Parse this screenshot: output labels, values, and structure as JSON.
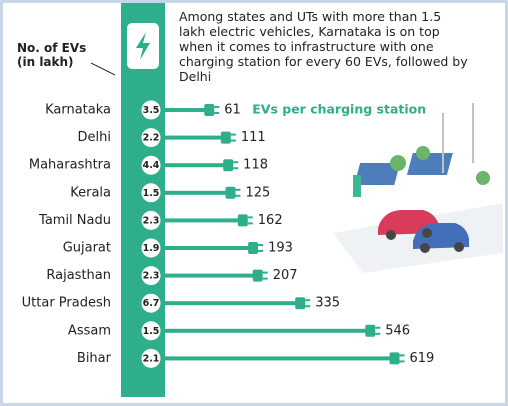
{
  "chart_data": {
    "type": "bar",
    "title": "Among states and UTs with more than 1.5 lakh electric vehicles, Karnataka is on top when it comes to infrastructure with one charging station for every 60 EVs, followed by Delhi",
    "ev_label": "No. of EVs (in lakh)",
    "categories": [
      "Karnataka",
      "Delhi",
      "Maharashtra",
      "Kerala",
      "Tamil Nadu",
      "Gujarat",
      "Rajasthan",
      "Uttar Pradesh",
      "Assam",
      "Bihar"
    ],
    "ev_counts": [
      3.5,
      2.2,
      4.4,
      1.5,
      2.3,
      1.9,
      2.3,
      6.7,
      1.5,
      2.1
    ],
    "series": [
      {
        "name": "EVs per charging station",
        "color": "#2fae8c",
        "values": [
          61,
          111,
          118,
          125,
          162,
          193,
          207,
          335,
          546,
          619
        ]
      }
    ]
  }
}
